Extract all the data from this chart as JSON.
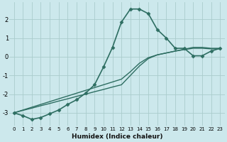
{
  "xlabel": "Humidex (Indice chaleur)",
  "background_color": "#cce8ec",
  "grid_color": "#aacccc",
  "line_color": "#2e6e62",
  "xlim": [
    -0.5,
    23.5
  ],
  "ylim": [
    -3.7,
    2.9
  ],
  "xticks": [
    0,
    1,
    2,
    3,
    4,
    5,
    6,
    7,
    8,
    9,
    10,
    11,
    12,
    13,
    14,
    15,
    16,
    17,
    18,
    19,
    20,
    21,
    22,
    23
  ],
  "yticks": [
    -3,
    -2,
    -1,
    0,
    1,
    2
  ],
  "series": [
    {
      "x": [
        0,
        1,
        2,
        3,
        4,
        5,
        6,
        7,
        8,
        9,
        10,
        11,
        12,
        13,
        14,
        15,
        16,
        17,
        18,
        19,
        20,
        21,
        22,
        23
      ],
      "y": [
        -3.0,
        -3.15,
        -3.35,
        -3.25,
        -3.05,
        -2.85,
        -2.55,
        -2.3,
        -1.95,
        -1.5,
        -0.55,
        0.5,
        1.85,
        2.55,
        2.55,
        2.3,
        1.45,
        1.0,
        0.45,
        0.45,
        0.05,
        0.05,
        0.3,
        0.45
      ],
      "has_marker": true,
      "marker": "D",
      "markersize": 2.5,
      "linewidth": 1.2
    },
    {
      "x": [
        0,
        1,
        2,
        3,
        4,
        5,
        6,
        7,
        8,
        9,
        10,
        11,
        12,
        13,
        14,
        15,
        16,
        17,
        18,
        19,
        20,
        21,
        22,
        23
      ],
      "y": [
        -3.0,
        -2.87,
        -2.75,
        -2.62,
        -2.5,
        -2.37,
        -2.25,
        -2.12,
        -2.0,
        -1.87,
        -1.75,
        -1.62,
        -1.5,
        -1.0,
        -0.5,
        -0.1,
        0.1,
        0.2,
        0.3,
        0.4,
        0.5,
        0.5,
        0.45,
        0.45
      ],
      "has_marker": false,
      "linewidth": 1.0
    },
    {
      "x": [
        0,
        1,
        2,
        3,
        4,
        5,
        6,
        7,
        8,
        9,
        10,
        11,
        12,
        13,
        14,
        15,
        16,
        17,
        18,
        19,
        20,
        21,
        22,
        23
      ],
      "y": [
        -3.0,
        -2.85,
        -2.7,
        -2.55,
        -2.4,
        -2.25,
        -2.1,
        -1.95,
        -1.8,
        -1.65,
        -1.5,
        -1.35,
        -1.2,
        -0.8,
        -0.35,
        -0.05,
        0.1,
        0.2,
        0.3,
        0.38,
        0.45,
        0.45,
        0.42,
        0.42
      ],
      "has_marker": false,
      "linewidth": 1.0
    }
  ]
}
